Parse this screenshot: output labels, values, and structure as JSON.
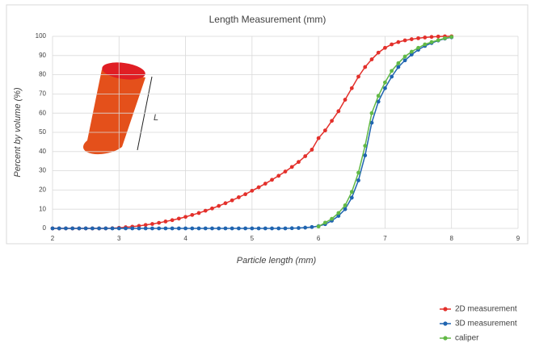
{
  "chart_data": {
    "type": "line",
    "title": "Length Measurement (mm)",
    "x_label": "Particle length (mm)",
    "y_label": "Percent by volume (%)",
    "annotation": "L",
    "x": [
      2,
      2.1,
      2.2,
      2.3,
      2.4,
      2.5,
      2.6,
      2.7,
      2.8,
      2.9,
      3,
      3.1,
      3.2,
      3.3,
      3.4,
      3.5,
      3.6,
      3.7,
      3.8,
      3.9,
      4,
      4.1,
      4.2,
      4.3,
      4.4,
      4.5,
      4.6,
      4.7,
      4.8,
      4.9,
      5,
      5.1,
      5.2,
      5.3,
      5.4,
      5.5,
      5.6,
      5.7,
      5.8,
      5.9,
      6,
      6.1,
      6.2,
      6.3,
      6.4,
      6.5,
      6.6,
      6.7,
      6.8,
      6.9,
      7,
      7.1,
      7.2,
      7.3,
      7.4,
      7.5,
      7.6,
      7.7,
      7.8,
      7.9,
      8
    ],
    "series": [
      {
        "name": "2D measurement",
        "color": "#e3302b",
        "values": [
          0,
          0,
          0,
          0,
          0,
          0,
          0,
          0,
          0,
          0.1,
          0.3,
          0.6,
          0.9,
          1.3,
          1.8,
          2.3,
          2.9,
          3.6,
          4.3,
          5.1,
          6.0,
          7.0,
          8.0,
          9.2,
          10.4,
          11.7,
          13.1,
          14.6,
          16.2,
          17.8,
          19.6,
          21.4,
          23.3,
          25.3,
          27.4,
          29.6,
          32.0,
          34.6,
          37.6,
          41,
          47,
          51,
          56,
          61,
          67,
          73,
          79,
          84,
          88,
          91.5,
          94,
          95.8,
          97,
          97.9,
          98.5,
          99,
          99.4,
          99.7,
          99.9,
          100,
          100
        ]
      },
      {
        "name": "3D measurement",
        "color": "#1f64b0",
        "values": [
          0,
          0,
          0,
          0,
          0,
          0,
          0,
          0,
          0,
          0,
          0,
          0,
          0,
          0,
          0,
          0,
          0,
          0,
          0,
          0,
          0,
          0,
          0,
          0,
          0,
          0,
          0,
          0,
          0,
          0,
          0,
          0,
          0,
          0,
          0,
          0,
          0.1,
          0.2,
          0.4,
          0.7,
          1.2,
          2.2,
          4,
          6.5,
          10,
          16,
          25,
          38,
          55,
          66,
          73,
          79,
          84,
          87.5,
          90.5,
          93,
          95,
          96.5,
          97.8,
          98.8,
          99.5
        ]
      },
      {
        "name": "caliper",
        "color": "#62b946",
        "values": [
          null,
          null,
          null,
          null,
          null,
          null,
          null,
          null,
          null,
          null,
          null,
          null,
          null,
          null,
          null,
          null,
          null,
          null,
          null,
          null,
          null,
          null,
          null,
          null,
          null,
          null,
          null,
          null,
          null,
          null,
          null,
          null,
          null,
          null,
          null,
          null,
          null,
          null,
          null,
          null,
          1,
          3,
          5,
          8,
          12,
          19,
          29,
          43,
          60,
          69,
          76,
          82,
          86,
          89.5,
          92,
          94,
          95.8,
          97,
          98,
          99,
          99.7
        ]
      }
    ],
    "xlim": [
      2,
      9
    ],
    "xticks": [
      2,
      3,
      4,
      5,
      6,
      7,
      8,
      9
    ],
    "ylim": [
      0,
      100
    ],
    "yticks": [
      0,
      10,
      20,
      30,
      40,
      50,
      60,
      70,
      80,
      90,
      100
    ],
    "grid": true,
    "legend": "bottom-right"
  }
}
